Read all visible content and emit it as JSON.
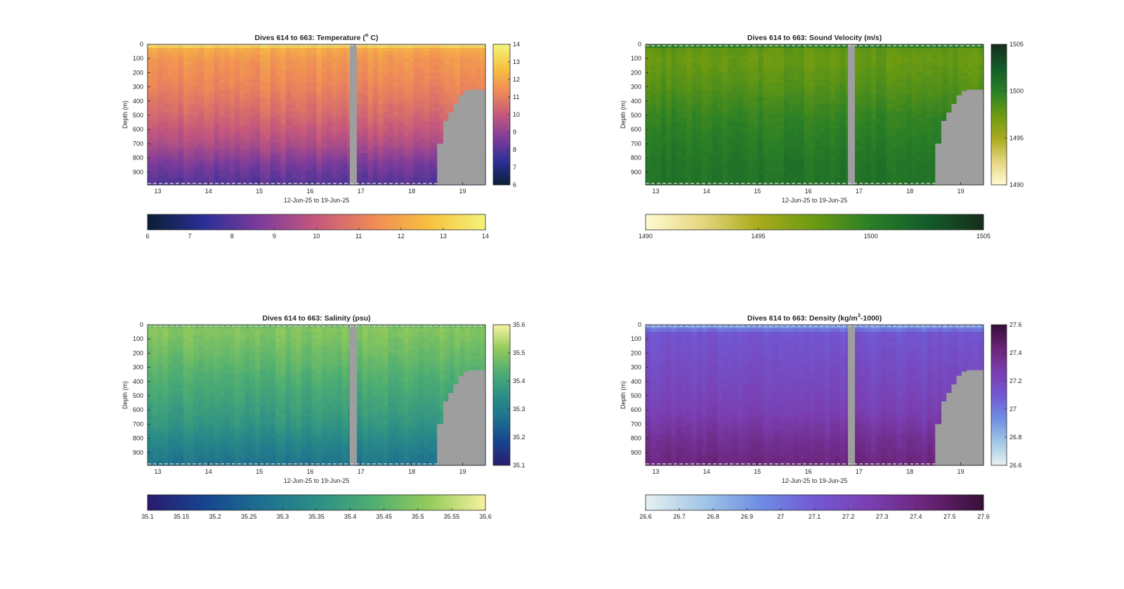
{
  "window": {
    "title": "",
    "background": "#ffffff"
  },
  "chart_data": [
    {
      "type": "heatmap",
      "title": "Dives 614 to 663: Temperature (°C)",
      "title_main": "Dives 614 to 663: Temperature (",
      "title_sup": "o",
      "title_tail": " C)",
      "xlabel": "12-Jun-25 to 19-Jun-25",
      "ylabel": "Depth (m)",
      "x_ticks": [
        "13",
        "14",
        "15",
        "16",
        "17",
        "18",
        "19"
      ],
      "y_ticks": [
        "0",
        "100",
        "200",
        "300",
        "400",
        "500",
        "600",
        "700",
        "800",
        "900"
      ],
      "xlim": [
        12.8,
        19.45
      ],
      "ylim": [
        0,
        990
      ],
      "y_reversed": true,
      "colorbar_ticks": [
        "6",
        "7",
        "8",
        "9",
        "10",
        "11",
        "12",
        "13",
        "14"
      ],
      "clim": [
        6,
        14
      ],
      "colormap": "thermal",
      "colormap_stops": [
        "#0b1e33",
        "#2b2f96",
        "#7d3c9a",
        "#c5587c",
        "#ef8a57",
        "#f7c13f",
        "#f3f37a"
      ],
      "value_profile": {
        "depth_m": [
          0,
          30,
          100,
          300,
          500,
          700,
          850,
          990
        ],
        "value": [
          13.7,
          12.2,
          11.7,
          11.2,
          10.5,
          9.6,
          8.6,
          8.0
        ]
      },
      "seafloor_gap_day": 16.85,
      "bathymetry": {
        "x": [
          18.5,
          18.62,
          18.72,
          18.82,
          18.92,
          19.02,
          19.12,
          19.45
        ],
        "depth_m": [
          700,
          540,
          480,
          420,
          360,
          330,
          320,
          320
        ]
      },
      "nodata_color": "#9e9e9e"
    },
    {
      "type": "heatmap",
      "title": "Dives 614 to 663: Sound Velocity (m/s)",
      "title_main": "Dives 614 to 663: Sound Velocity (m/s)",
      "title_sup": "",
      "title_tail": "",
      "xlabel": "12-Jun-25 to 19-Jun-25",
      "ylabel": "Depth (m)",
      "x_ticks": [
        "13",
        "14",
        "15",
        "16",
        "17",
        "18",
        "19"
      ],
      "y_ticks": [
        "0",
        "100",
        "200",
        "300",
        "400",
        "500",
        "600",
        "700",
        "800",
        "900"
      ],
      "xlim": [
        12.8,
        19.45
      ],
      "ylim": [
        0,
        990
      ],
      "y_reversed": true,
      "colorbar_ticks": [
        "1490",
        "1495",
        "1500",
        "1505"
      ],
      "clim": [
        1490,
        1505
      ],
      "colormap": "speed",
      "colormap_stops": [
        "#fffbd2",
        "#e6d67f",
        "#a9ab1c",
        "#6b9a12",
        "#2a7f26",
        "#135c2b",
        "#172d1b"
      ],
      "value_profile": {
        "depth_m": [
          0,
          30,
          100,
          300,
          500,
          700,
          850,
          990
        ],
        "value": [
          1501.5,
          1498.0,
          1497.6,
          1498.4,
          1499.6,
          1500.3,
          1500.8,
          1500.9
        ]
      },
      "seafloor_gap_day": 16.85,
      "bathymetry": {
        "x": [
          18.5,
          18.62,
          18.72,
          18.82,
          18.92,
          19.02,
          19.12,
          19.45
        ],
        "depth_m": [
          700,
          540,
          480,
          420,
          360,
          330,
          320,
          320
        ]
      },
      "nodata_color": "#9e9e9e"
    },
    {
      "type": "heatmap",
      "title": "Dives 614 to 663: Salinity (psu)",
      "title_main": "Dives 614 to 663: Salinity (psu)",
      "title_sup": "",
      "title_tail": "",
      "xlabel": "12-Jun-25 to 19-Jun-25",
      "ylabel": "Depth (m)",
      "x_ticks": [
        "13",
        "14",
        "15",
        "16",
        "17",
        "18",
        "19"
      ],
      "y_ticks": [
        "0",
        "100",
        "200",
        "300",
        "400",
        "500",
        "600",
        "700",
        "800",
        "900"
      ],
      "xlim": [
        12.8,
        19.45
      ],
      "ylim": [
        0,
        990
      ],
      "y_reversed": true,
      "colorbar_ticks": [
        "35.1",
        "35.15",
        "35.2",
        "35.25",
        "35.3",
        "35.35",
        "35.4",
        "35.45",
        "35.5",
        "35.55",
        "35.6"
      ],
      "colorbar_side_ticks": [
        "35.1",
        "35.2",
        "35.3",
        "35.4",
        "35.5",
        "35.6"
      ],
      "clim": [
        35.1,
        35.6
      ],
      "colormap": "haline",
      "colormap_stops": [
        "#2a1a6e",
        "#16448f",
        "#1d6f8f",
        "#2b8e86",
        "#4fae72",
        "#94cb5a",
        "#f7f1a0"
      ],
      "value_profile": {
        "depth_m": [
          0,
          30,
          100,
          300,
          500,
          700,
          850,
          990
        ],
        "value": [
          35.47,
          35.5,
          35.49,
          35.45,
          35.41,
          35.37,
          35.32,
          35.28
        ]
      },
      "seafloor_gap_day": 16.85,
      "bathymetry": {
        "x": [
          18.5,
          18.62,
          18.72,
          18.82,
          18.92,
          19.02,
          19.12,
          19.45
        ],
        "depth_m": [
          700,
          540,
          480,
          420,
          360,
          330,
          320,
          320
        ]
      },
      "nodata_color": "#9e9e9e"
    },
    {
      "type": "heatmap",
      "title": "Dives 614 to 663: Density (kg/m³-1000)",
      "title_main": "Dives 614 to 663: Density (kg/m",
      "title_sup": "3",
      "title_tail": "-1000)",
      "xlabel": "12-Jun-25 to 19-Jun-25",
      "ylabel": "Depth (m)",
      "x_ticks": [
        "13",
        "14",
        "15",
        "16",
        "17",
        "18",
        "19"
      ],
      "y_ticks": [
        "0",
        "100",
        "200",
        "300",
        "400",
        "500",
        "600",
        "700",
        "800",
        "900"
      ],
      "xlim": [
        12.8,
        19.45
      ],
      "ylim": [
        0,
        990
      ],
      "y_reversed": true,
      "colorbar_ticks": [
        "26.6",
        "26.7",
        "26.8",
        "26.9",
        "27",
        "27.1",
        "27.2",
        "27.3",
        "27.4",
        "27.5",
        "27.6"
      ],
      "colorbar_side_ticks": [
        "26.6",
        "26.8",
        "27",
        "27.2",
        "27.4",
        "27.6"
      ],
      "clim": [
        26.6,
        27.6
      ],
      "colormap": "dense",
      "colormap_stops": [
        "#e6f1f1",
        "#a3c8e6",
        "#6f8fe3",
        "#7159d4",
        "#7a3eb0",
        "#6a2478",
        "#360f36"
      ],
      "value_profile": {
        "depth_m": [
          0,
          20,
          60,
          300,
          600,
          800,
          990
        ],
        "value": [
          26.85,
          26.95,
          27.12,
          27.18,
          27.25,
          27.35,
          27.42
        ]
      },
      "seafloor_gap_day": 16.85,
      "bathymetry": {
        "x": [
          18.5,
          18.62,
          18.72,
          18.82,
          18.92,
          19.02,
          19.12,
          19.45
        ],
        "depth_m": [
          700,
          540,
          480,
          420,
          360,
          330,
          320,
          320
        ]
      },
      "nodata_color": "#9e9e9e"
    }
  ]
}
